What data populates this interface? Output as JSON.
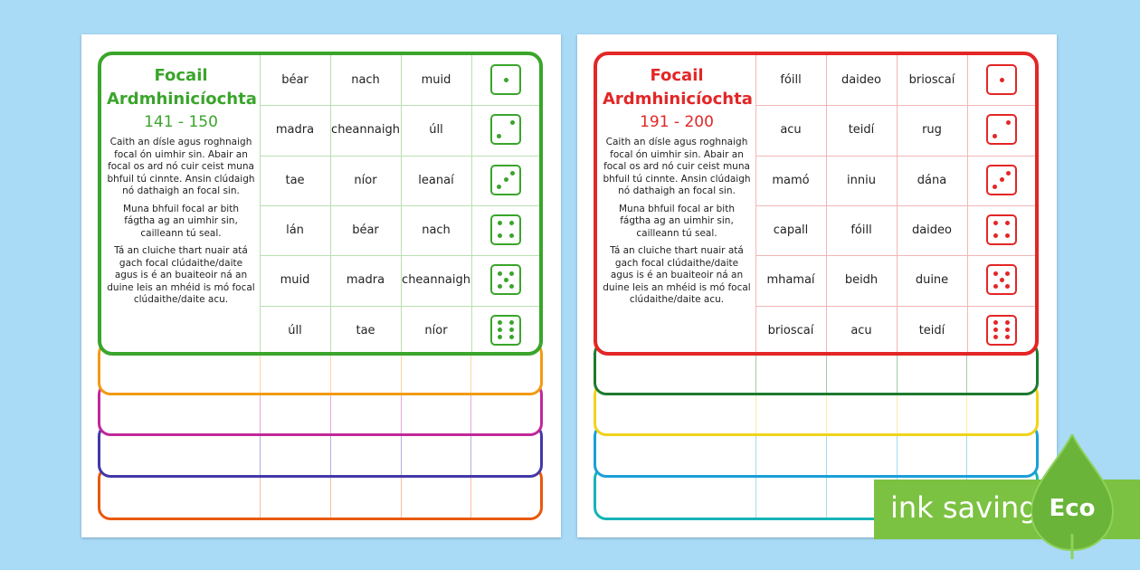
{
  "cards": [
    {
      "title": "Focail Ardmhinicíochta",
      "range": "141 - 150",
      "instructions": [
        "Caith an dísle agus roghnaigh focal ón uimhir sin. Abair an focal os ard nó cuir ceist muna bhfuil tú cinnte. Ansin clúdaigh nó dathaigh an focal sin.",
        "Muna bhfuil focal ar bith fágtha ag an uimhir sin, cailleann tú seal.",
        "Tá an cluiche thart nuair atá gach focal clúdaithe/daite agus is é an buaiteoir ná an duine leis an mhéid is mó focal clúdaithe/daite acu."
      ],
      "rows": [
        [
          "béar",
          "nach",
          "muid"
        ],
        [
          "madra",
          "cheannaigh",
          "úll"
        ],
        [
          "tae",
          "níor",
          "leanaí"
        ],
        [
          "lán",
          "béar",
          "nach"
        ],
        [
          "muid",
          "madra",
          "cheannaigh"
        ],
        [
          "úll",
          "tae",
          "níor"
        ]
      ]
    },
    {
      "title": "Focail Ardmhinicíochta",
      "range": "191 - 200",
      "instructions": [
        "Caith an dísle agus roghnaigh focal ón uimhir sin. Abair an focal os ard nó cuir ceist muna bhfuil tú cinnte. Ansin clúdaigh nó dathaigh an focal sin.",
        "Muna bhfuil focal ar bith fágtha ag an uimhir sin, cailleann tú seal.",
        "Tá an cluiche thart nuair atá gach focal clúdaithe/daite agus is é an buaiteoir ná an duine leis an mhéid is mó focal clúdaithe/daite acu."
      ],
      "rows": [
        [
          "fóill",
          "daideo",
          "brioscaí"
        ],
        [
          "acu",
          "teidí",
          "rug"
        ],
        [
          "mamó",
          "inniu",
          "dána"
        ],
        [
          "capall",
          "fóill",
          "daideo"
        ],
        [
          "mhamaí",
          "beidh",
          "duine"
        ],
        [
          "brioscaí",
          "acu",
          "teidí"
        ]
      ]
    }
  ],
  "badge": {
    "label": "ink saving",
    "eco": "Eco"
  }
}
